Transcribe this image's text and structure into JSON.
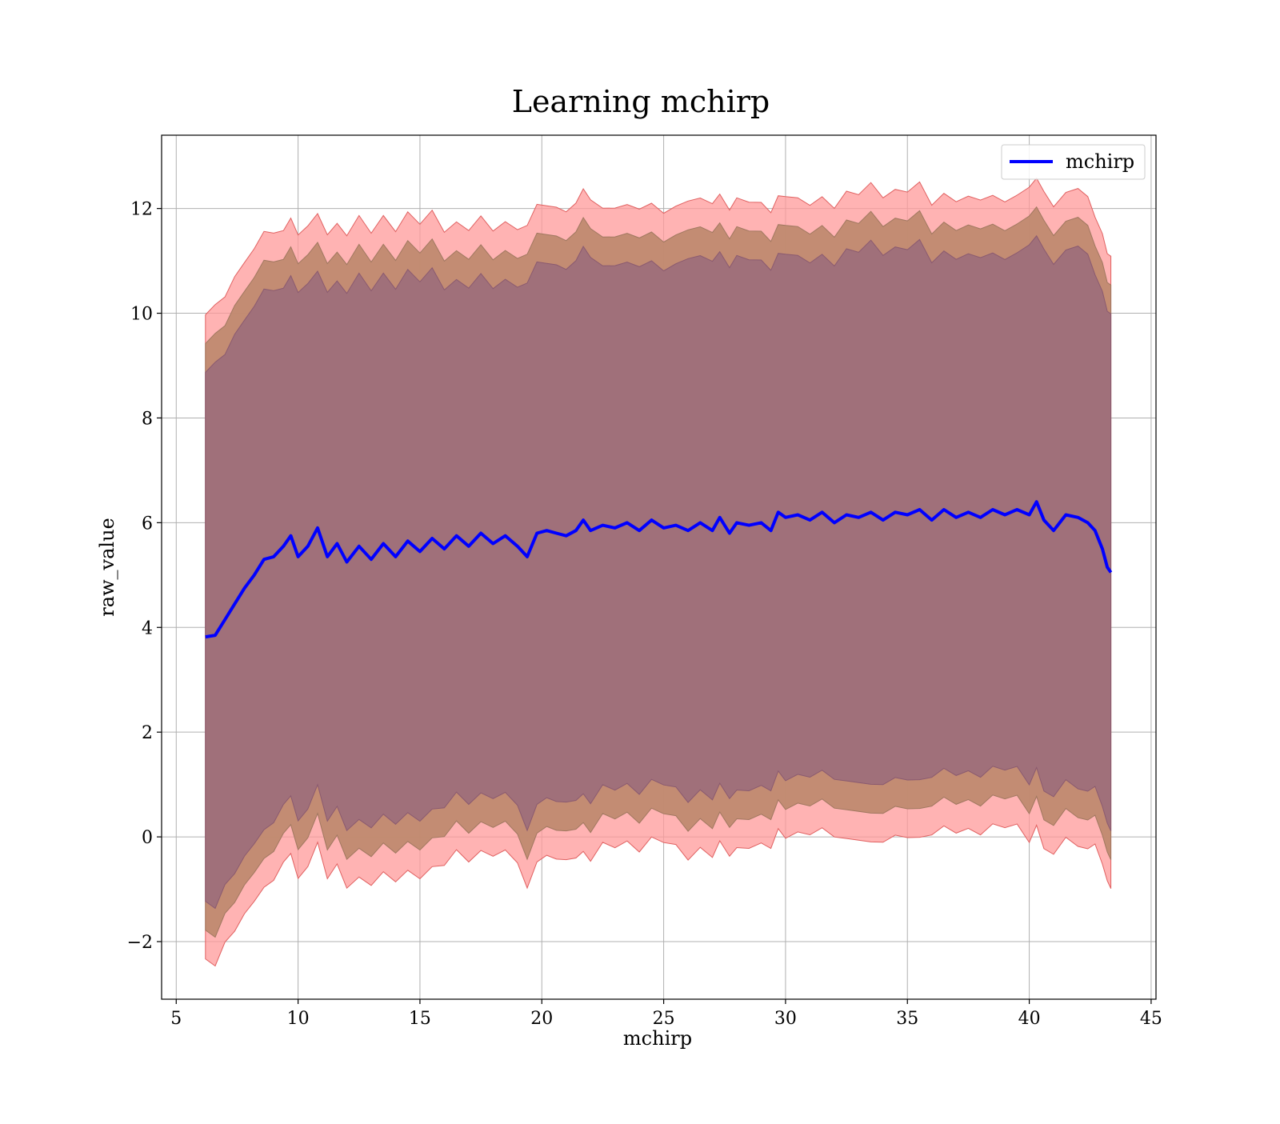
{
  "chart_data": {
    "type": "line",
    "title": "Learning mchirp",
    "xlabel": "mchirp",
    "ylabel": "raw_value",
    "xlim": [
      4.4,
      45.2
    ],
    "ylim": [
      -3.1,
      13.4
    ],
    "xticks": [
      5,
      10,
      15,
      20,
      25,
      30,
      35,
      40,
      45
    ],
    "yticks": [
      -2,
      0,
      2,
      4,
      6,
      8,
      10,
      12
    ],
    "xtick_labels": [
      "5",
      "10",
      "15",
      "20",
      "25",
      "30",
      "35",
      "40",
      "45"
    ],
    "ytick_labels": [
      "−2",
      "0",
      "2",
      "4",
      "6",
      "8",
      "10",
      "12"
    ],
    "grid": true,
    "legend_position": "top-right",
    "colors": {
      "line": "#0000ff",
      "band_outer": "#ff9a9a",
      "band_outer_edge": "#e06060",
      "band_middle": "#c08a70",
      "band_inner": "#a0707a",
      "band_inner_edge": "#8a5a70",
      "grid": "#b0b0b0"
    },
    "bands": [
      {
        "level": "outer",
        "half_width": 6.15
      },
      {
        "level": "middle",
        "half_width": 5.6
      },
      {
        "level": "inner",
        "half_width": 5.05
      }
    ],
    "series": [
      {
        "name": "mchirp",
        "x": [
          6.2,
          6.6,
          7.0,
          7.4,
          7.8,
          8.2,
          8.6,
          9.0,
          9.4,
          9.7,
          10.0,
          10.4,
          10.8,
          11.2,
          11.6,
          12.0,
          12.5,
          13.0,
          13.5,
          14.0,
          14.5,
          15.0,
          15.5,
          16.0,
          16.5,
          17.0,
          17.5,
          18.0,
          18.5,
          19.0,
          19.4,
          19.8,
          20.2,
          20.6,
          21.0,
          21.4,
          21.7,
          22.0,
          22.5,
          23.0,
          23.5,
          24.0,
          24.5,
          25.0,
          25.5,
          26.0,
          26.5,
          27.0,
          27.3,
          27.7,
          28.0,
          28.5,
          29.0,
          29.4,
          29.7,
          30.0,
          30.5,
          31.0,
          31.5,
          32.0,
          32.5,
          33.0,
          33.5,
          34.0,
          34.5,
          35.0,
          35.5,
          36.0,
          36.5,
          37.0,
          37.5,
          38.0,
          38.5,
          39.0,
          39.5,
          40.0,
          40.3,
          40.6,
          41.0,
          41.5,
          42.0,
          42.4,
          42.7,
          43.0,
          43.2,
          43.35
        ],
        "values": [
          3.82,
          3.85,
          4.15,
          4.45,
          4.75,
          5.0,
          5.3,
          5.35,
          5.55,
          5.75,
          5.35,
          5.55,
          5.9,
          5.35,
          5.6,
          5.25,
          5.55,
          5.3,
          5.6,
          5.35,
          5.65,
          5.45,
          5.7,
          5.5,
          5.75,
          5.55,
          5.8,
          5.6,
          5.75,
          5.55,
          5.35,
          5.8,
          5.85,
          5.8,
          5.75,
          5.85,
          6.05,
          5.85,
          5.95,
          5.9,
          6.0,
          5.85,
          6.05,
          5.9,
          5.95,
          5.85,
          6.0,
          5.85,
          6.1,
          5.8,
          6.0,
          5.95,
          6.0,
          5.85,
          6.2,
          6.1,
          6.15,
          6.05,
          6.2,
          6.0,
          6.15,
          6.1,
          6.2,
          6.05,
          6.2,
          6.15,
          6.25,
          6.05,
          6.25,
          6.1,
          6.2,
          6.1,
          6.25,
          6.15,
          6.25,
          6.15,
          6.4,
          6.05,
          5.85,
          6.15,
          6.1,
          6.0,
          5.85,
          5.5,
          5.15,
          5.05
        ]
      }
    ]
  }
}
